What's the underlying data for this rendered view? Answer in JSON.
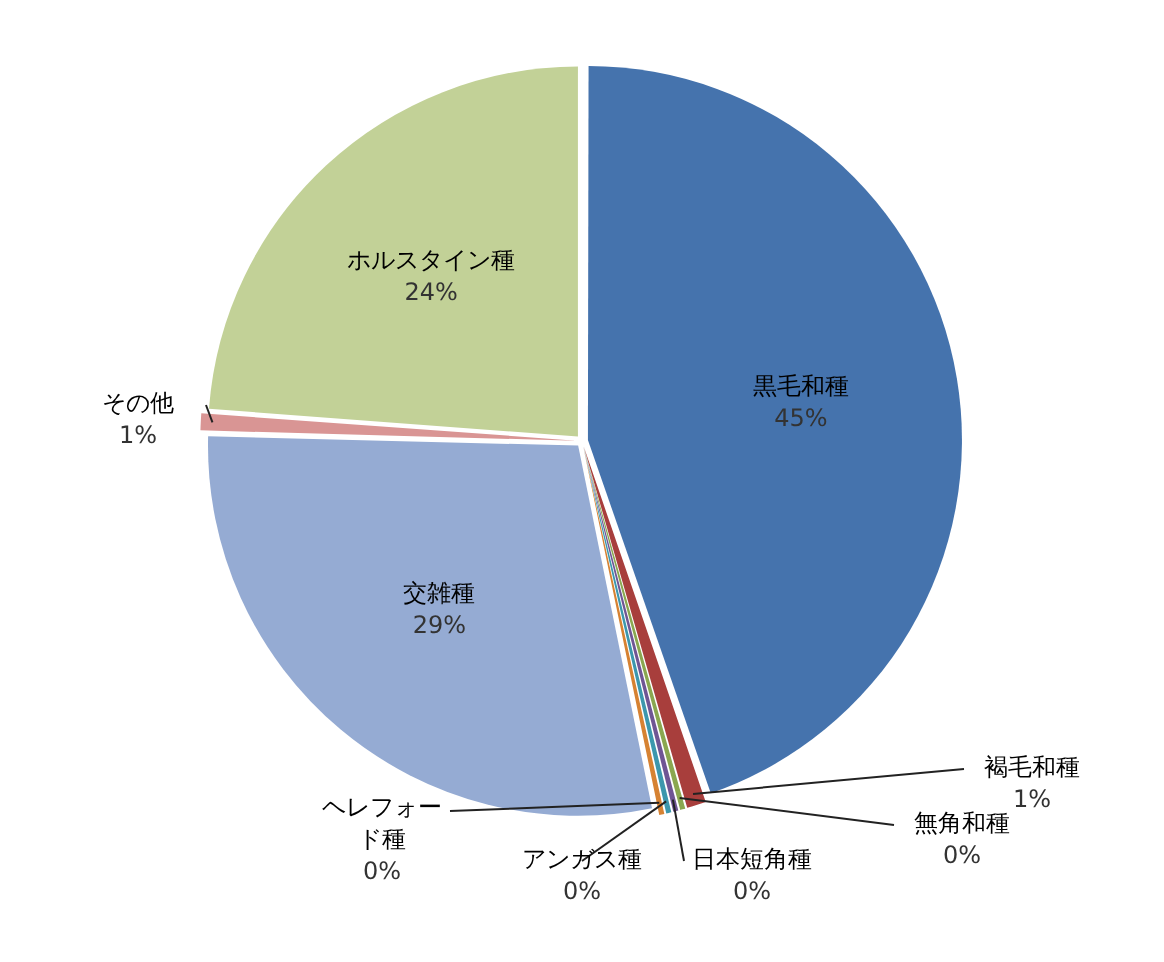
{
  "chart_data": {
    "type": "pie",
    "categories": [
      "黒毛和種",
      "褐毛和種",
      "無角和種",
      "日本短角種",
      "アンガス種",
      "ヘレフォード種",
      "交雑種",
      "その他",
      "ホルスタイン種"
    ],
    "values": [
      44.7,
      0.9,
      0.3,
      0.3,
      0.3,
      0.3,
      28.6,
      0.8,
      23.8
    ],
    "colors": [
      "#4573ad",
      "#a83e3c",
      "#8aa750",
      "#6f5594",
      "#3c97ad",
      "#d68232",
      "#95abd3",
      "#d99594",
      "#c2d197"
    ],
    "value_labels": [
      "45%",
      "1%",
      "0%",
      "0%",
      "0%",
      "0%",
      "29%",
      "1%",
      "24%"
    ],
    "legend": false
  }
}
